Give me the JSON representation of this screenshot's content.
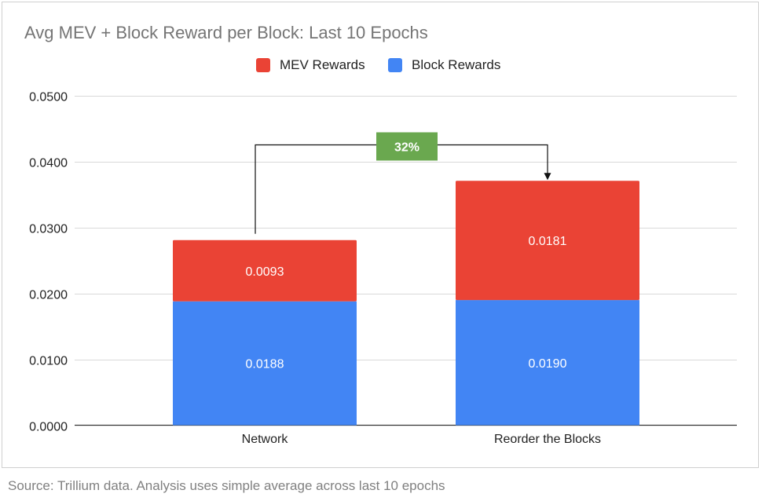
{
  "colors": {
    "mev": "#ea4335",
    "block": "#4285f4",
    "badge": "#6aa84f",
    "grid": "#d9d9d9",
    "axis": "#333333",
    "title": "#757575"
  },
  "chart_data": {
    "type": "bar",
    "stacked": true,
    "title": "Avg MEV + Block Reward per Block: Last 10 Epochs",
    "categories": [
      "Network",
      "Reorder the Blocks"
    ],
    "series": [
      {
        "name": "Block Rewards",
        "values": [
          0.0188,
          0.019
        ],
        "labels": [
          "0.0188",
          "0.0190"
        ]
      },
      {
        "name": "MEV Rewards",
        "values": [
          0.0093,
          0.0181
        ],
        "labels": [
          "0.0093",
          "0.0181"
        ]
      }
    ],
    "legend_order": [
      "MEV Rewards",
      "Block Rewards"
    ],
    "legend_position": "top",
    "ylim": [
      0,
      0.05
    ],
    "yticks": [
      0,
      0.01,
      0.02,
      0.03,
      0.04,
      0.05
    ],
    "ytick_labels": [
      "0.0000",
      "0.0100",
      "0.0200",
      "0.0300",
      "0.0400",
      "0.0500"
    ],
    "grid": true,
    "annotation": {
      "text": "32%",
      "from": "Network",
      "to": "Reorder the Blocks"
    }
  },
  "footer": {
    "source": "Source: Trillium data. Analysis uses simple average across last 10 epochs"
  }
}
